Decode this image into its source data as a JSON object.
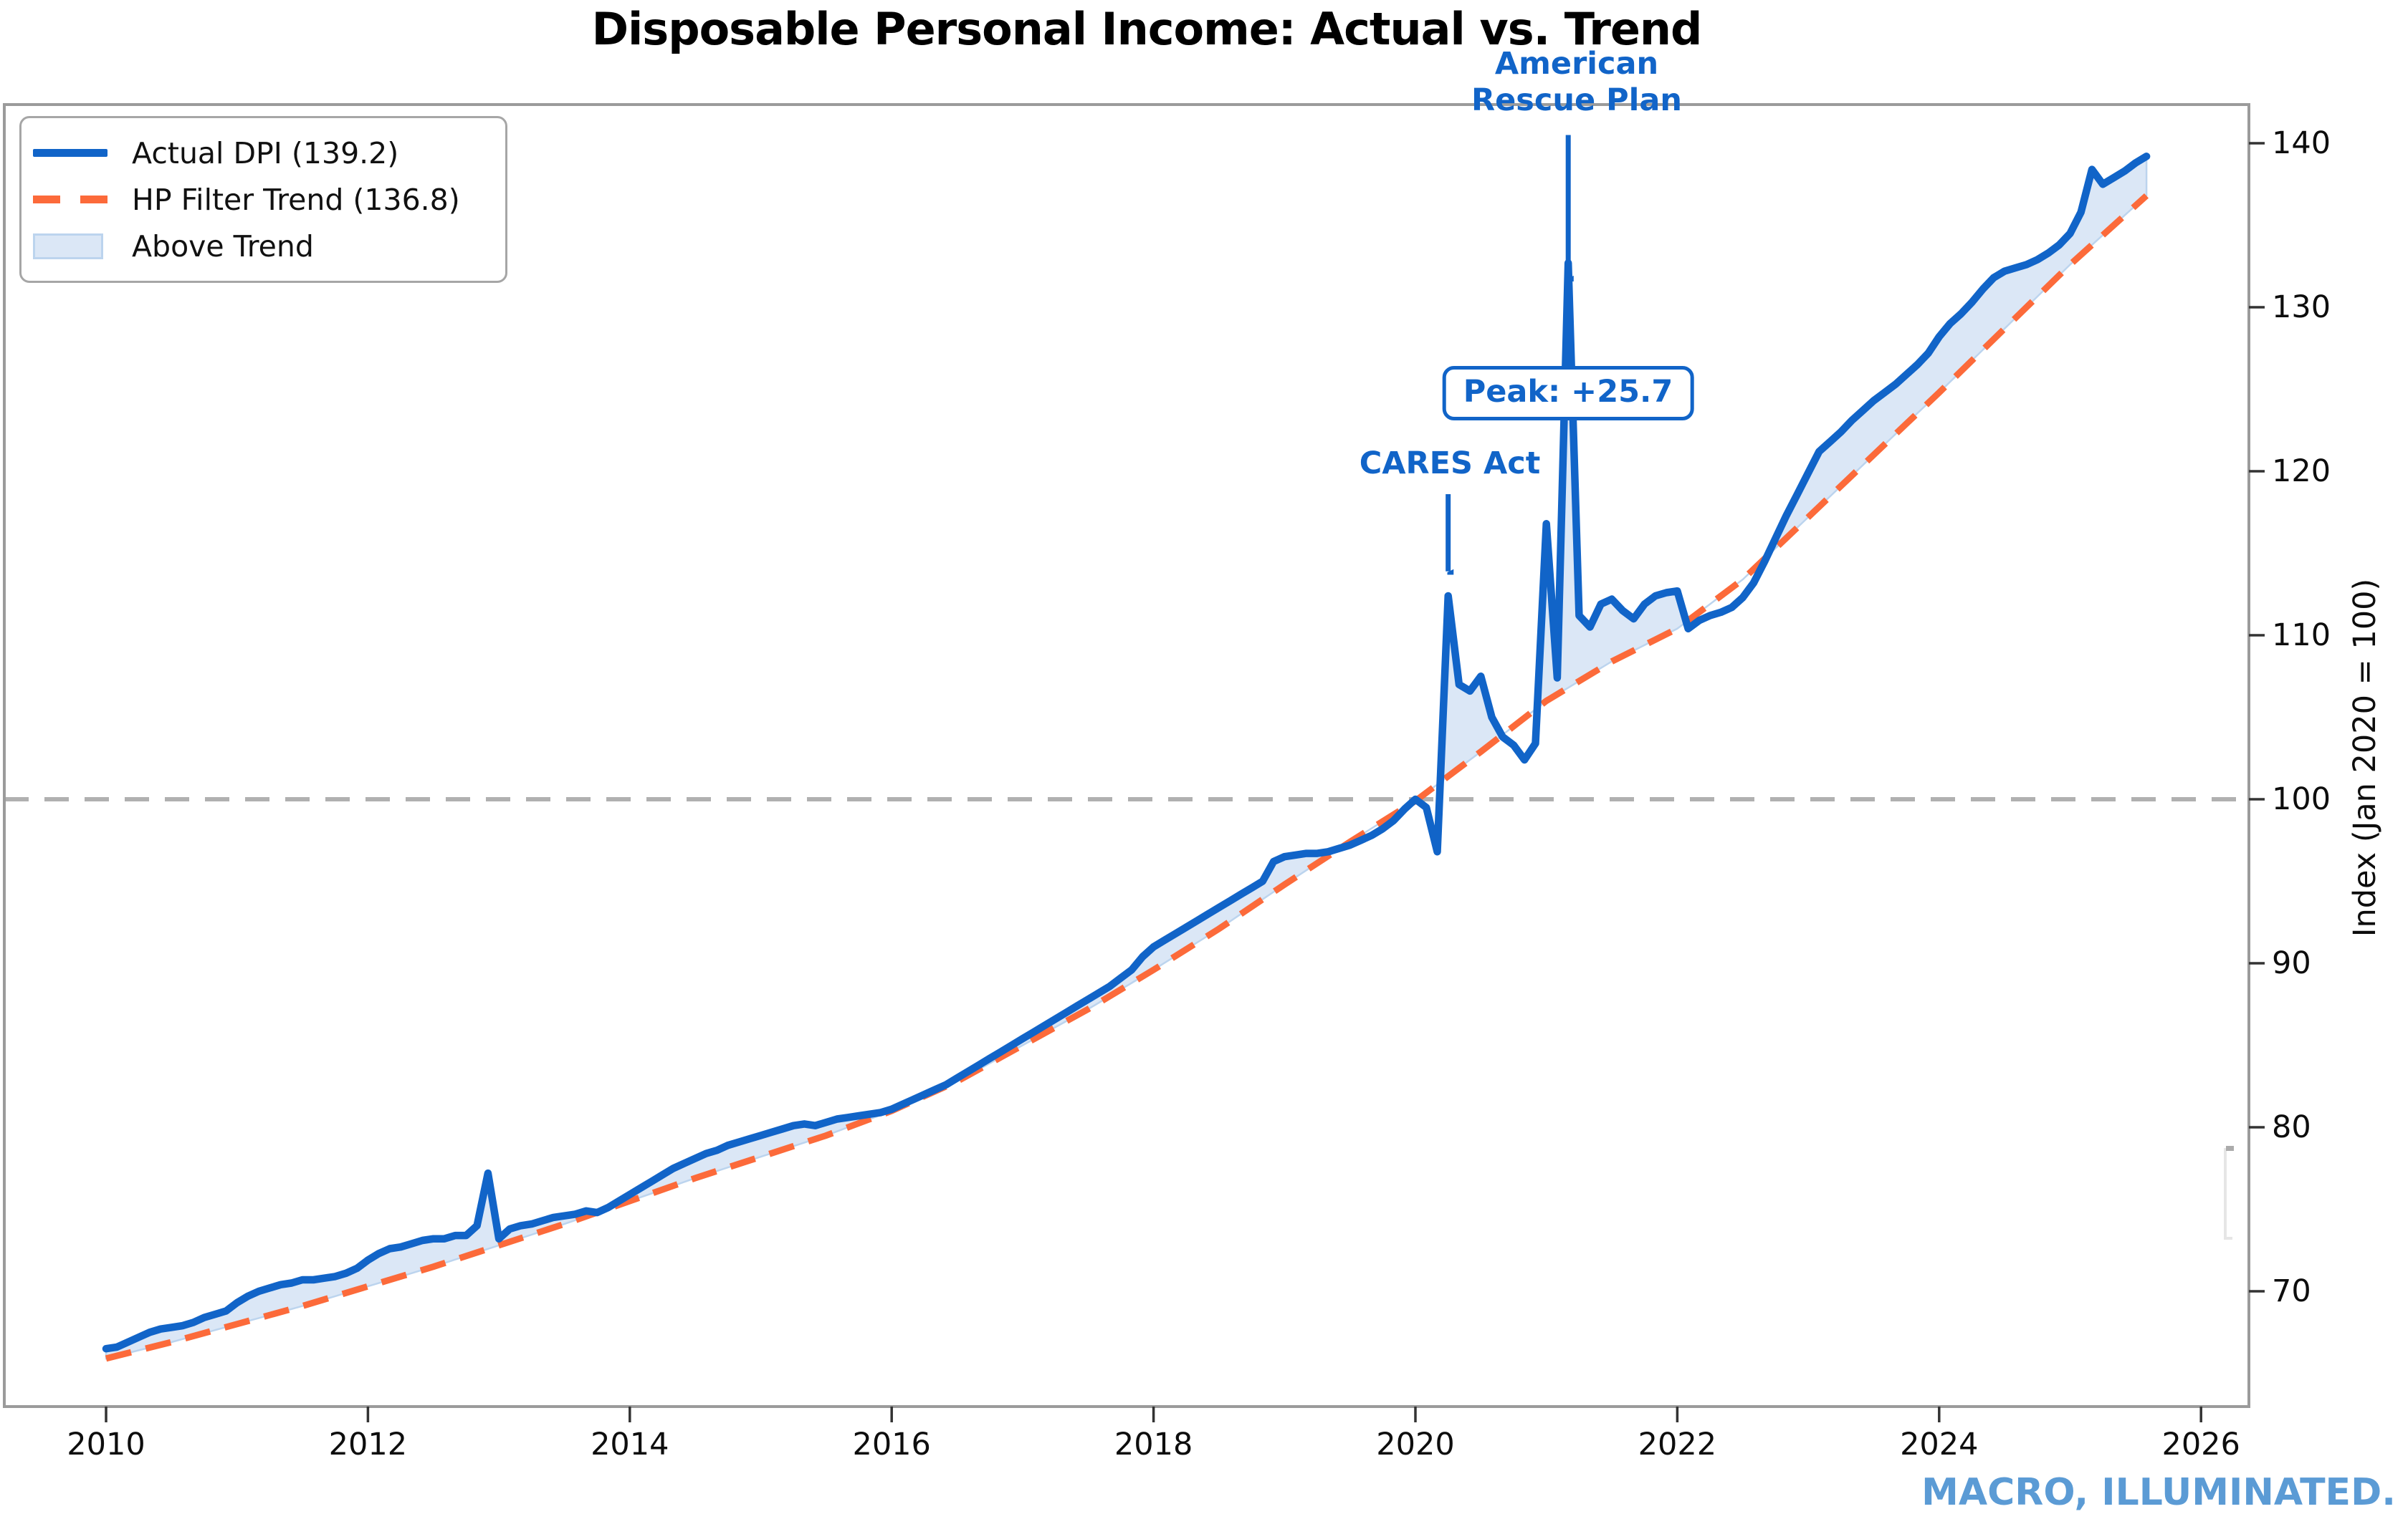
{
  "title": "Disposable Personal Income: Actual vs. Trend",
  "watermark": "MACRO, ILLUMINATED.",
  "colors": {
    "actual": "#1164C8",
    "trend": "#FC6A3A",
    "fill": "#DBE7F6",
    "fill_border": "#BCD4EE",
    "annotation": "#1164C8",
    "watermark": "#5B9BD5",
    "reference_line": "#B0B0B0",
    "spine": "#9B9B9B",
    "tick": "#333333",
    "legend_border": "#A6A6A6"
  },
  "legend": {
    "items": [
      {
        "label": "Actual DPI (139.2)",
        "swatch": "solid-line"
      },
      {
        "label": "HP Filter Trend (136.8)",
        "swatch": "dashed-line"
      },
      {
        "label": "Above Trend",
        "swatch": "filled-area"
      }
    ]
  },
  "annotations": {
    "american_rescue_plan": {
      "line1": "American",
      "line2": "Rescue Plan",
      "arrow": {
        "x_year": 2021.167,
        "from_value": 140.5,
        "to_value": 131.8
      }
    },
    "cares_act": {
      "label": "CARES Act",
      "arrow": {
        "x_year": 2020.25,
        "from_value": 118.6,
        "to_value": 113.9
      }
    },
    "peak": {
      "label": "Peak: +25.7"
    }
  },
  "axes": {
    "x_ticks": [
      {
        "year": 2010,
        "label": "2010"
      },
      {
        "year": 2012,
        "label": "2012"
      },
      {
        "year": 2014,
        "label": "2014"
      },
      {
        "year": 2016,
        "label": "2016"
      },
      {
        "year": 2018,
        "label": "2018"
      },
      {
        "year": 2020,
        "label": "2020"
      },
      {
        "year": 2022,
        "label": "2022"
      },
      {
        "year": 2024,
        "label": "2024"
      },
      {
        "year": 2026,
        "label": "2026"
      }
    ],
    "y_ticks": [
      {
        "value": 70,
        "label": "70"
      },
      {
        "value": 80,
        "label": "80"
      },
      {
        "value": 90,
        "label": "90"
      },
      {
        "value": 100,
        "label": "100"
      },
      {
        "value": 110,
        "label": "110"
      },
      {
        "value": 120,
        "label": "120"
      },
      {
        "value": 130,
        "label": "130"
      },
      {
        "value": 140,
        "label": "140"
      }
    ],
    "y_axis_title": "Index (Jan 2020 = 100)",
    "reference_value": 100
  },
  "chart_data": {
    "type": "line",
    "title": "Disposable Personal Income: Actual vs. Trend",
    "ylabel": "Index (Jan 2020 = 100)",
    "xlim": [
      2009.2,
      2026.4
    ],
    "ylim": [
      63,
      142.4
    ],
    "grid": false,
    "legend_position": "upper-left",
    "reference_line": 100,
    "series": {
      "actual": {
        "name": "Actual DPI",
        "latest_value": 139.2,
        "frequency": "monthly",
        "start_year": 2010,
        "values": [
          66.5,
          66.6,
          66.9,
          67.2,
          67.5,
          67.7,
          67.8,
          67.9,
          68.1,
          68.4,
          68.6,
          68.8,
          69.3,
          69.7,
          70.0,
          70.2,
          70.4,
          70.5,
          70.7,
          70.7,
          70.8,
          70.9,
          71.1,
          71.4,
          71.9,
          72.3,
          72.6,
          72.7,
          72.9,
          73.1,
          73.2,
          73.2,
          73.4,
          73.4,
          74.0,
          77.2,
          73.2,
          73.8,
          74.0,
          74.1,
          74.3,
          74.5,
          74.6,
          74.7,
          74.9,
          74.8,
          75.1,
          75.5,
          75.9,
          76.3,
          76.7,
          77.1,
          77.5,
          77.8,
          78.1,
          78.4,
          78.6,
          78.9,
          79.1,
          79.3,
          79.5,
          79.7,
          79.9,
          80.1,
          80.2,
          80.1,
          80.3,
          80.5,
          80.6,
          80.7,
          80.8,
          80.9,
          81.1,
          81.4,
          81.7,
          82.0,
          82.3,
          82.6,
          83.0,
          83.4,
          83.8,
          84.2,
          84.6,
          85.0,
          85.4,
          85.8,
          86.2,
          86.6,
          87.0,
          87.4,
          87.8,
          88.2,
          88.6,
          89.1,
          89.6,
          90.4,
          91.0,
          91.4,
          91.8,
          92.2,
          92.6,
          93.0,
          93.4,
          93.8,
          94.2,
          94.6,
          95.0,
          96.2,
          96.5,
          96.6,
          96.7,
          96.7,
          96.8,
          97.0,
          97.2,
          97.5,
          97.8,
          98.2,
          98.7,
          99.4,
          100.0,
          99.5,
          96.8,
          112.4,
          107.0,
          106.6,
          107.5,
          105.0,
          103.8,
          103.3,
          102.4,
          103.4,
          116.8,
          107.4,
          132.7,
          111.2,
          110.5,
          111.9,
          112.2,
          111.5,
          111.0,
          111.9,
          112.4,
          112.6,
          112.7,
          110.4,
          110.9,
          111.2,
          111.4,
          111.7,
          112.3,
          113.2,
          114.5,
          115.9,
          117.3,
          118.6,
          119.9,
          121.2,
          121.8,
          122.4,
          123.1,
          123.7,
          124.3,
          124.8,
          125.3,
          125.9,
          126.5,
          127.2,
          128.2,
          129.0,
          129.6,
          130.3,
          131.1,
          131.8,
          132.2,
          132.4,
          132.6,
          132.9,
          133.3,
          133.8,
          134.5,
          135.8,
          138.4,
          137.5,
          137.9,
          138.3,
          138.8,
          139.2
        ]
      },
      "trend": {
        "name": "HP Filter Trend",
        "latest_value": 136.8,
        "points": [
          [
            2010.0,
            65.9
          ],
          [
            2010.5,
            66.9
          ],
          [
            2011.0,
            68.0
          ],
          [
            2011.5,
            69.1
          ],
          [
            2012.0,
            70.3
          ],
          [
            2012.5,
            71.5
          ],
          [
            2013.0,
            72.8
          ],
          [
            2013.5,
            74.1
          ],
          [
            2014.0,
            75.5
          ],
          [
            2014.5,
            76.9
          ],
          [
            2015.0,
            78.2
          ],
          [
            2015.5,
            79.5
          ],
          [
            2016.0,
            81.0
          ],
          [
            2016.5,
            82.8
          ],
          [
            2017.0,
            85.0
          ],
          [
            2017.5,
            87.2
          ],
          [
            2018.0,
            89.6
          ],
          [
            2018.5,
            92.1
          ],
          [
            2019.0,
            94.8
          ],
          [
            2019.5,
            97.4
          ],
          [
            2020.0,
            99.9
          ],
          [
            2020.5,
            102.9
          ],
          [
            2021.0,
            106.0
          ],
          [
            2021.5,
            108.4
          ],
          [
            2022.0,
            110.4
          ],
          [
            2022.5,
            113.4
          ],
          [
            2023.0,
            117.2
          ],
          [
            2023.5,
            121.0
          ],
          [
            2024.0,
            124.8
          ],
          [
            2024.5,
            128.7
          ],
          [
            2025.0,
            132.6
          ],
          [
            2025.583,
            136.8
          ]
        ]
      }
    },
    "fill": {
      "name": "Above Trend",
      "rule": "shade area where actual > trend"
    },
    "annotations": [
      {
        "text": "CARES Act",
        "x_year": 2020.25,
        "points_to_value": 112.4
      },
      {
        "text": "American Rescue Plan",
        "x_year": 2021.167,
        "points_to_value": 132.7
      },
      {
        "text": "Peak: +25.7",
        "x_year": 2021.167,
        "peak_above_trend": 25.7
      }
    ]
  }
}
